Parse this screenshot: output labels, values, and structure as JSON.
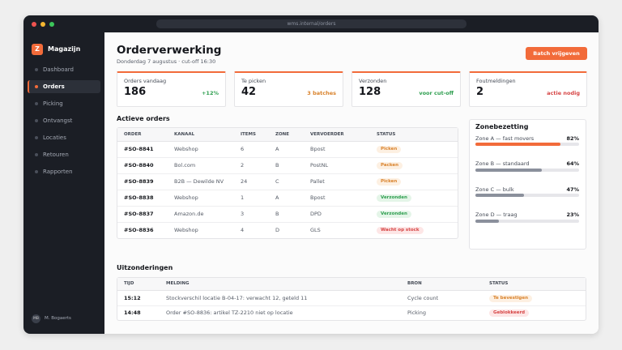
{
  "browser": {
    "url": "wms.internal/orders"
  },
  "sidebar": {
    "brand": {
      "logo": "Z",
      "name": "Magazijn"
    },
    "nav": [
      "Dashboard",
      "Orders",
      "Picking",
      "Ontvangst",
      "Locaties",
      "Retouren",
      "Rapporten"
    ],
    "active": 1,
    "user": {
      "initials": "MB",
      "name": "M. Bogaerts"
    }
  },
  "header": {
    "title": "Orderverwerking",
    "subtitle": "Donderdag 7 augustus · cut-off 16:30",
    "button": "Batch vrijgeven"
  },
  "kpis": [
    {
      "label": "Orders vandaag",
      "value": 186,
      "badge": "+12%",
      "tone": "green"
    },
    {
      "label": "Te picken",
      "value": 42,
      "badge": "3 batches",
      "tone": "orange"
    },
    {
      "label": "Verzonden",
      "value": 128,
      "badge": "voor cut-off",
      "tone": "green"
    },
    {
      "label": "Foutmeldingen",
      "value": 2,
      "badge": "actie nodig",
      "tone": "red"
    }
  ],
  "orders": {
    "title": "Actieve orders",
    "columns": [
      "ORDER",
      "KANAAL",
      "ITEMS",
      "ZONE",
      "VERVOERDER",
      "STATUS"
    ],
    "rows": [
      {
        "order": "#SO-8841",
        "channel": "Webshop",
        "items": 6,
        "zone": "A",
        "carrier": "Bpost",
        "status": "Picken",
        "tone": "orange"
      },
      {
        "order": "#SO-8840",
        "channel": "Bol.com",
        "items": 2,
        "zone": "B",
        "carrier": "PostNL",
        "status": "Packen",
        "tone": "orange"
      },
      {
        "order": "#SO-8839",
        "channel": "B2B — Dewilde NV",
        "items": 24,
        "zone": "C",
        "carrier": "Pallet",
        "status": "Picken",
        "tone": "orange"
      },
      {
        "order": "#SO-8838",
        "channel": "Webshop",
        "items": 1,
        "zone": "A",
        "carrier": "Bpost",
        "status": "Verzonden",
        "tone": "green"
      },
      {
        "order": "#SO-8837",
        "channel": "Amazon.de",
        "items": 3,
        "zone": "B",
        "carrier": "DPD",
        "status": "Verzonden",
        "tone": "green"
      },
      {
        "order": "#SO-8836",
        "channel": "Webshop",
        "items": 4,
        "zone": "D",
        "carrier": "GLS",
        "status": "Wacht op stock",
        "tone": "red"
      }
    ]
  },
  "zones": {
    "title": "Zonebezetting",
    "items": [
      {
        "name": "Zone A — fast movers",
        "value": 82,
        "label": "82%",
        "color": "#f26b3a"
      },
      {
        "name": "Zone B — standaard",
        "value": 64,
        "label": "64%",
        "color": "#8b909c"
      },
      {
        "name": "Zone C — bulk",
        "value": 47,
        "label": "47%",
        "color": "#8b909c"
      },
      {
        "name": "Zone D — traag",
        "value": 23,
        "label": "23%",
        "color": "#8b909c"
      }
    ]
  },
  "exceptions": {
    "title": "Uitzonderingen",
    "columns": [
      "TIJD",
      "MELDING",
      "BRON",
      "STATUS"
    ],
    "rows": [
      {
        "time": "15:12",
        "message": "Stockverschil locatie B-04-17: verwacht 12, geteld 11",
        "source": "Cycle count",
        "status": "Te bevestigen",
        "tone": "orange"
      },
      {
        "time": "14:48",
        "message": "Order #SO-8836: artikel TZ-2210 niet op locatie",
        "source": "Picking",
        "status": "Geblokkeerd",
        "tone": "red"
      }
    ]
  }
}
